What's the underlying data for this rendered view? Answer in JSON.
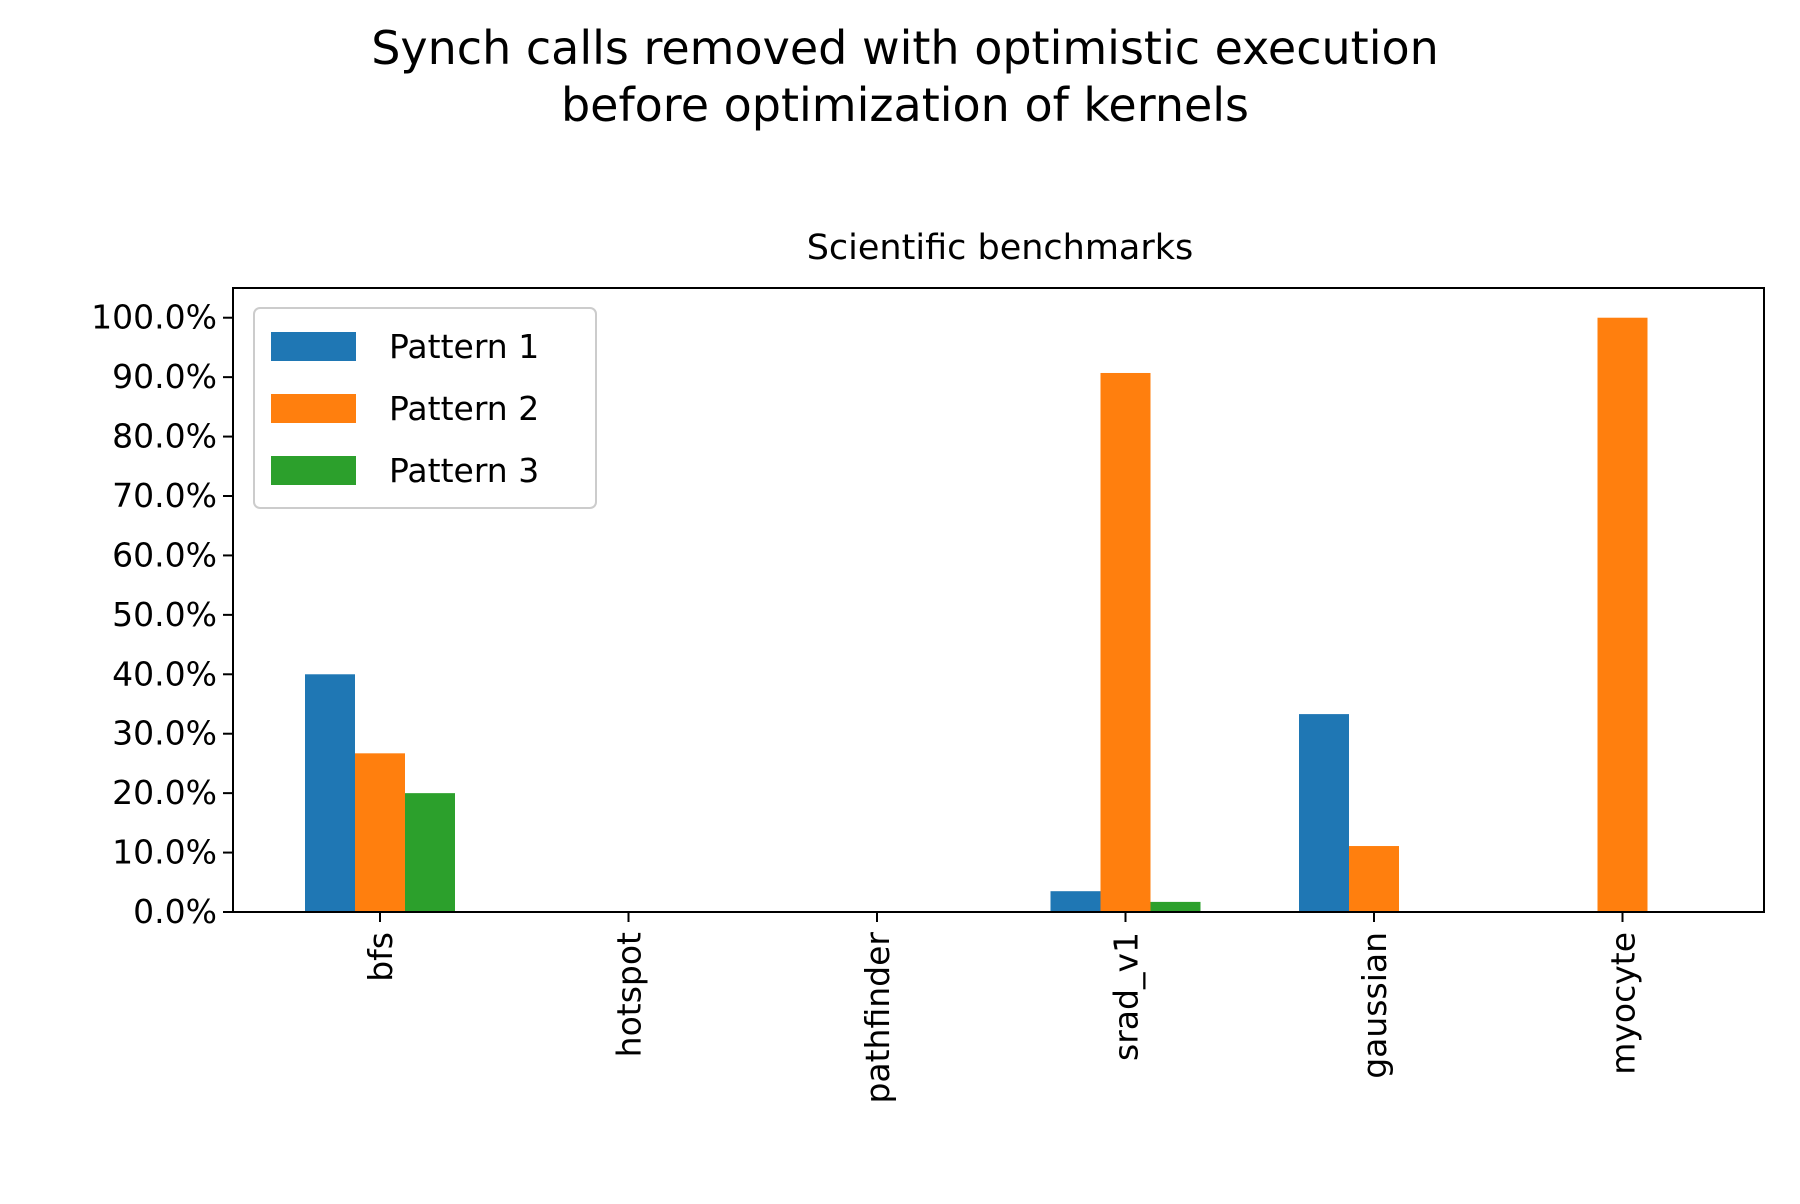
{
  "chart_data": {
    "type": "bar",
    "suptitle_lines": [
      "Synch calls removed with optimistic execution",
      "before optimization of kernels"
    ],
    "title": "Scientific benchmarks",
    "xlabel": "",
    "ylabel": "",
    "categories": [
      "bfs",
      "hotspot",
      "pathfinder",
      "srad_v1",
      "gaussian",
      "myocyte"
    ],
    "series": [
      {
        "name": "Pattern 1",
        "color": "#1f77b4",
        "values": [
          40.0,
          0.0,
          0.0,
          3.5,
          33.3,
          0.0
        ]
      },
      {
        "name": "Pattern 2",
        "color": "#ff7f0e",
        "values": [
          26.7,
          0.0,
          0.0,
          90.7,
          11.1,
          100.0
        ]
      },
      {
        "name": "Pattern 3",
        "color": "#2ca02c",
        "values": [
          20.0,
          0.0,
          0.0,
          1.7,
          0.0,
          0.0
        ]
      }
    ],
    "ylim": [
      0,
      105
    ],
    "yticks": [
      0,
      10,
      20,
      30,
      40,
      50,
      60,
      70,
      80,
      90,
      100
    ],
    "ytick_labels": [
      "0.0%",
      "10.0%",
      "20.0%",
      "30.0%",
      "40.0%",
      "50.0%",
      "60.0%",
      "70.0%",
      "80.0%",
      "90.0%",
      "100.0%"
    ],
    "x_tick_rotation": "vertical",
    "legend_position": "upper-left",
    "grid": false
  }
}
